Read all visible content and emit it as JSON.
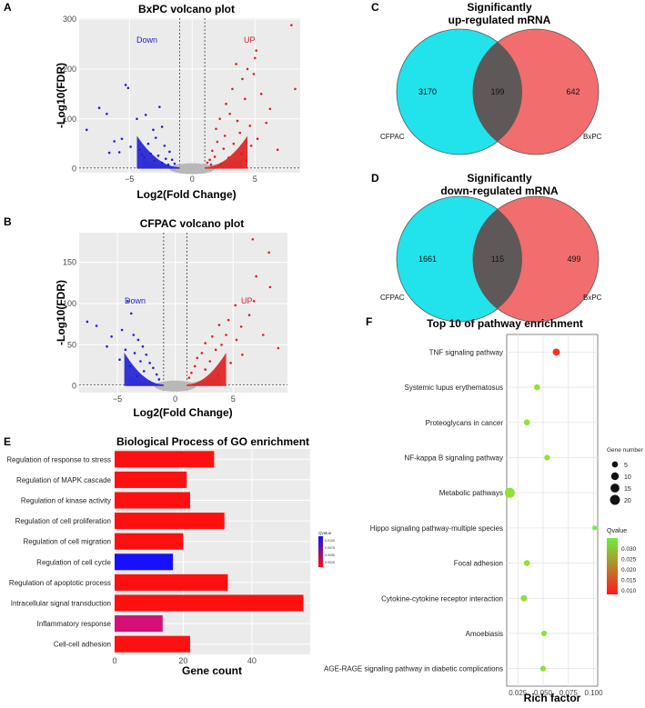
{
  "panels": {
    "A": {
      "letter": "A",
      "chart_data": {
        "type": "scatter",
        "title": "BxPC volcano plot",
        "xlabel": "Log2(Fold Change)",
        "ylabel": "-Log10(FDR)",
        "xlim": [
          -9,
          8.6
        ],
        "ylim": [
          -8,
          302
        ],
        "xticks": [
          -5,
          0,
          5
        ],
        "yticks": [
          0,
          100,
          200,
          300
        ],
        "xtick_labels": [
          "−5",
          "0",
          "5"
        ],
        "ytick_labels": [
          "0",
          "100",
          "200",
          "300"
        ],
        "thresholds": {
          "x": [
            -1,
            1
          ],
          "y": 1.3
        },
        "annotations": {
          "down": "Down",
          "up": "UP"
        },
        "colors": {
          "down": "#1f1fd6",
          "up": "#e01e1e",
          "ns": "#b8b8b8",
          "bg": "#ebebeb"
        },
        "down_points": [
          [
            -8.4,
            78
          ],
          [
            -7.4,
            122
          ],
          [
            -6.8,
            110
          ],
          [
            -5.3,
            168
          ],
          [
            -5.1,
            162
          ],
          [
            -6.2,
            55
          ],
          [
            -5.6,
            60
          ],
          [
            -4.4,
            100
          ],
          [
            -3.7,
            108
          ],
          [
            -2.6,
            124
          ],
          [
            -3.1,
            78
          ],
          [
            -2.4,
            84
          ],
          [
            -4.9,
            44
          ],
          [
            -3.5,
            50
          ],
          [
            -4.2,
            38
          ],
          [
            -2.9,
            62
          ],
          [
            -5.8,
            33
          ],
          [
            -6.6,
            32
          ],
          [
            -3.3,
            30
          ],
          [
            -2.2,
            46
          ],
          [
            -4.0,
            28
          ],
          [
            -1.8,
            34
          ],
          [
            -2.7,
            26
          ],
          [
            -3.8,
            22
          ],
          [
            -2.1,
            20
          ],
          [
            -1.6,
            18
          ],
          [
            -3.0,
            16
          ],
          [
            -2.4,
            12
          ],
          [
            -1.4,
            10
          ],
          [
            -1.9,
            8
          ]
        ],
        "up_points": [
          [
            7.9,
            288
          ],
          [
            8.2,
            160
          ],
          [
            5.1,
            237
          ],
          [
            5.0,
            222
          ],
          [
            3.5,
            210
          ],
          [
            4.4,
            200
          ],
          [
            4.9,
            190
          ],
          [
            4.0,
            180
          ],
          [
            3.2,
            160
          ],
          [
            5.5,
            150
          ],
          [
            2.7,
            130
          ],
          [
            4.2,
            140
          ],
          [
            6.2,
            120
          ],
          [
            3.0,
            110
          ],
          [
            2.2,
            100
          ],
          [
            3.6,
            96
          ],
          [
            5.9,
            92
          ],
          [
            4.6,
            86
          ],
          [
            1.9,
            80
          ],
          [
            3.8,
            72
          ],
          [
            2.6,
            66
          ],
          [
            5.2,
            60
          ],
          [
            2.0,
            54
          ],
          [
            3.3,
            50
          ],
          [
            4.7,
            46
          ],
          [
            6.8,
            38
          ],
          [
            2.5,
            40
          ],
          [
            1.6,
            36
          ],
          [
            3.9,
            30
          ],
          [
            1.8,
            24
          ],
          [
            2.9,
            22
          ],
          [
            1.4,
            18
          ],
          [
            4.3,
            16
          ],
          [
            1.2,
            12
          ],
          [
            2.3,
            10
          ],
          [
            1.5,
            8
          ]
        ]
      }
    },
    "B": {
      "letter": "B",
      "chart_data": {
        "type": "scatter",
        "title": "CFPAC volcano plot",
        "xlabel": "Log2(Fold Change)",
        "ylabel": "-Log10(FDR)",
        "xlim": [
          -8.3,
          9.7
        ],
        "ylim": [
          -8,
          186
        ],
        "xticks": [
          -5,
          0,
          5
        ],
        "yticks": [
          0,
          50,
          100,
          150
        ],
        "xtick_labels": [
          "−5",
          "0",
          "5"
        ],
        "ytick_labels": [
          "0",
          "50",
          "100",
          "150"
        ],
        "thresholds": {
          "x": [
            -1,
            1
          ],
          "y": 1.3
        },
        "annotations": {
          "down": "Down",
          "up": "UP"
        },
        "colors": {
          "down": "#1f1fd6",
          "up": "#e01e1e",
          "ns": "#b8b8b8",
          "bg": "#ebebeb"
        },
        "down_points": [
          [
            -7.6,
            78
          ],
          [
            -6.8,
            73
          ],
          [
            -5.5,
            60
          ],
          [
            -4.1,
            103
          ],
          [
            -3.8,
            88
          ],
          [
            -4.6,
            68
          ],
          [
            -3.6,
            62
          ],
          [
            -5.9,
            48
          ],
          [
            -3.2,
            56
          ],
          [
            -4.3,
            44
          ],
          [
            -2.8,
            48
          ],
          [
            -3.5,
            40
          ],
          [
            -2.5,
            38
          ],
          [
            -4.8,
            32
          ],
          [
            -3.0,
            30
          ],
          [
            -2.2,
            28
          ],
          [
            -3.9,
            24
          ],
          [
            -1.9,
            22
          ],
          [
            -2.7,
            18
          ],
          [
            -1.6,
            14
          ],
          [
            -3.3,
            12
          ],
          [
            -1.4,
            8
          ]
        ],
        "up_points": [
          [
            6.7,
            178
          ],
          [
            8.1,
            162
          ],
          [
            7.0,
            133
          ],
          [
            8.2,
            120
          ],
          [
            6.8,
            103
          ],
          [
            5.2,
            98
          ],
          [
            6.4,
            86
          ],
          [
            4.6,
            80
          ],
          [
            5.7,
            72
          ],
          [
            3.8,
            74
          ],
          [
            7.6,
            62
          ],
          [
            4.4,
            62
          ],
          [
            3.2,
            60
          ],
          [
            5.3,
            56
          ],
          [
            2.6,
            52
          ],
          [
            4.0,
            50
          ],
          [
            8.9,
            46
          ],
          [
            3.5,
            44
          ],
          [
            2.3,
            40
          ],
          [
            5.8,
            38
          ],
          [
            1.9,
            34
          ],
          [
            3.0,
            30
          ],
          [
            4.8,
            28
          ],
          [
            1.7,
            24
          ],
          [
            2.6,
            20
          ],
          [
            1.4,
            16
          ],
          [
            3.7,
            14
          ],
          [
            1.2,
            10
          ]
        ]
      }
    },
    "C": {
      "letter": "C",
      "title_line1": "Significantly",
      "title_line2": "up-regulated mRNA",
      "left_count": "3170",
      "overlap_count": "199",
      "right_count": "642",
      "left_label": "CFPAC",
      "right_label": "BxPC",
      "colors": {
        "left": "#22e3eb",
        "right": "#f26d6d",
        "overlap": "#5f5858"
      }
    },
    "D": {
      "letter": "D",
      "title_line1": "Significantly",
      "title_line2": "down-regulated mRNA",
      "left_count": "1661",
      "overlap_count": "115",
      "right_count": "499",
      "left_label": "CFPAC",
      "right_label": "BxPC",
      "colors": {
        "left": "#22e3eb",
        "right": "#f26d6d",
        "overlap": "#5f5858"
      }
    },
    "E": {
      "letter": "E",
      "chart_data": {
        "type": "bar",
        "orientation": "horizontal",
        "title": "Biological Process of GO enrichment",
        "xlabel": "Gene count",
        "xlim": [
          0,
          57
        ],
        "xticks": [
          0,
          20,
          40
        ],
        "categories": [
          "Regulation of response to stress",
          "Regulation of MAPK cascade",
          "Regulation of kinase activity",
          "Regulation of cell proliferation",
          "Regulation of cell migration",
          "Regulation of cell cycle",
          "Regulation of apoptotic process",
          "Intracellular signal transduction",
          "Inflammatory response",
          "Cell-cell adhesion"
        ],
        "values": [
          29,
          21,
          22,
          32,
          20,
          17,
          33,
          55,
          14,
          22
        ],
        "qvalues": [
          0.0005,
          0.0005,
          0.0005,
          0.0005,
          0.0005,
          0.0103,
          0.0005,
          0.0005,
          0.0039,
          0.0005
        ],
        "legend": {
          "title": "Qvalue",
          "ticks": [
            "0.0100",
            "0.0075",
            "0.0050",
            "0.0025"
          ],
          "range": [
            0.0005,
            0.0105
          ]
        },
        "colors": {
          "high": "#1010ff",
          "low": "#ff1010"
        }
      }
    },
    "F": {
      "letter": "F",
      "chart_data": {
        "type": "scatter",
        "title": "Top 10 of pathway enrichment",
        "xlabel": "Rich factor",
        "xlim": [
          0.014,
          0.104
        ],
        "xticks": [
          0.025,
          0.05,
          0.075,
          0.1
        ],
        "xtick_labels": [
          "0.025",
          "0.050",
          "0.075",
          "0.100"
        ],
        "categories": [
          "TNF signaling pathway",
          "Systemic lupus erythematosus",
          "Proteoglycans in cancer",
          "NF-kappa B signaling pathway",
          "Metabolic pathways",
          "Hippo signaling pathway-multiple species",
          "Focal adhesion",
          "Cytokine-cytokine receptor interaction",
          "Amoebiasis",
          "AGE-RAGE signaling pathway in diabetic complications"
        ],
        "x": [
          0.063,
          0.044,
          0.034,
          0.054,
          0.017,
          0.101,
          0.034,
          0.031,
          0.051,
          0.05
        ],
        "gene_number": [
          8,
          5,
          5,
          4,
          21,
          2,
          5,
          6,
          4,
          4
        ],
        "qvalue": [
          0.008,
          0.03,
          0.03,
          0.03,
          0.03,
          0.034,
          0.03,
          0.03,
          0.03,
          0.03
        ],
        "size_legend": {
          "title": "Gene number",
          "values": [
            5,
            10,
            15,
            20
          ]
        },
        "color_legend": {
          "title": "Qvalue",
          "ticks": [
            "0.030",
            "0.025",
            "0.020",
            "0.015",
            "0.010"
          ],
          "range": [
            0.006,
            0.034
          ]
        },
        "colors": {
          "high": "#6cf03c",
          "low": "#ff1a1a"
        }
      }
    }
  }
}
